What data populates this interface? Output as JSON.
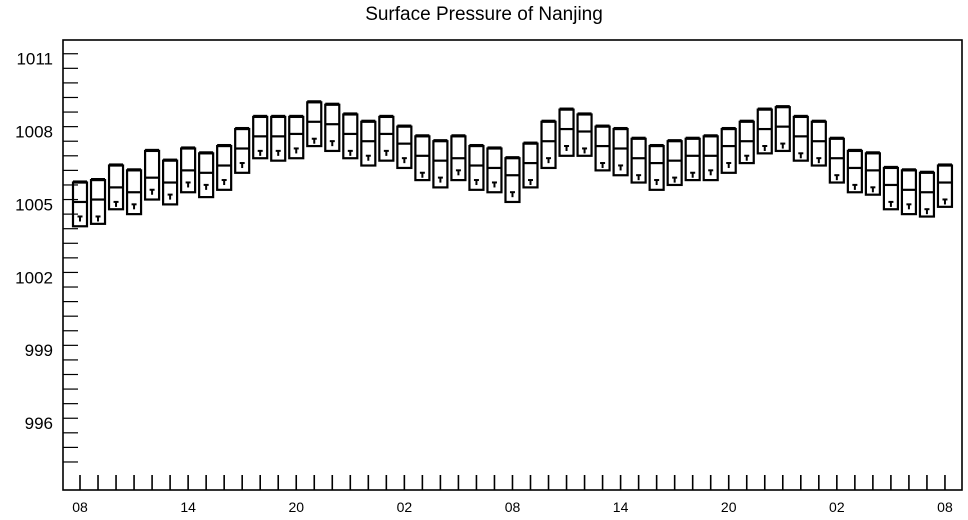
{
  "chart_data": {
    "type": "boxplot",
    "title": "Surface Pressure of Nanjing",
    "xlabel": "",
    "ylabel": "",
    "ylim": [
      994.3,
      1011.6
    ],
    "y_ticks": [
      996,
      999,
      1002,
      1005,
      1008,
      1011
    ],
    "x_tick_labels": [
      "08",
      "14",
      "20",
      "02",
      "08",
      "14",
      "20",
      "02",
      "08"
    ],
    "x_tick_label_index": [
      0,
      6,
      12,
      18,
      24,
      30,
      36,
      42,
      48
    ],
    "grid": false,
    "boxes": [
      {
        "x": 0,
        "low": 1004.1,
        "q1": 1004.1,
        "median": 1005.1,
        "q3": 1005.9,
        "high": 1005.9,
        "mean": 1004.4
      },
      {
        "x": 1,
        "low": 1004.2,
        "q1": 1004.2,
        "median": 1005.2,
        "q3": 1006.0,
        "high": 1006.0,
        "mean": 1004.4
      },
      {
        "x": 2,
        "low": 1004.8,
        "q1": 1004.8,
        "median": 1005.7,
        "q3": 1006.6,
        "high": 1006.6,
        "mean": 1005.0
      },
      {
        "x": 3,
        "low": 1004.6,
        "q1": 1004.6,
        "median": 1005.5,
        "q3": 1006.4,
        "high": 1006.4,
        "mean": 1004.9
      },
      {
        "x": 4,
        "low": 1005.2,
        "q1": 1005.2,
        "median": 1006.1,
        "q3": 1007.2,
        "high": 1007.2,
        "mean": 1005.5
      },
      {
        "x": 5,
        "low": 1005.0,
        "q1": 1005.0,
        "median": 1005.9,
        "q3": 1006.8,
        "high": 1006.8,
        "mean": 1005.3
      },
      {
        "x": 6,
        "low": 1005.5,
        "q1": 1005.5,
        "median": 1006.4,
        "q3": 1007.3,
        "high": 1007.3,
        "mean": 1005.8
      },
      {
        "x": 7,
        "low": 1005.3,
        "q1": 1005.3,
        "median": 1006.3,
        "q3": 1007.1,
        "high": 1007.1,
        "mean": 1005.7
      },
      {
        "x": 8,
        "low": 1005.6,
        "q1": 1005.6,
        "median": 1006.6,
        "q3": 1007.4,
        "high": 1007.4,
        "mean": 1005.9
      },
      {
        "x": 9,
        "low": 1006.3,
        "q1": 1006.3,
        "median": 1007.3,
        "q3": 1008.1,
        "high": 1008.1,
        "mean": 1006.6
      },
      {
        "x": 10,
        "low": 1006.9,
        "q1": 1006.9,
        "median": 1007.8,
        "q3": 1008.6,
        "high": 1008.6,
        "mean": 1007.1
      },
      {
        "x": 11,
        "low": 1006.8,
        "q1": 1006.8,
        "median": 1007.8,
        "q3": 1008.6,
        "high": 1008.6,
        "mean": 1007.1
      },
      {
        "x": 12,
        "low": 1006.9,
        "q1": 1006.9,
        "median": 1007.9,
        "q3": 1008.6,
        "high": 1008.6,
        "mean": 1007.2
      },
      {
        "x": 13,
        "low": 1007.4,
        "q1": 1007.4,
        "median": 1008.4,
        "q3": 1009.2,
        "high": 1009.2,
        "mean": 1007.6
      },
      {
        "x": 14,
        "low": 1007.2,
        "q1": 1007.2,
        "median": 1008.3,
        "q3": 1009.1,
        "high": 1009.1,
        "mean": 1007.5
      },
      {
        "x": 15,
        "low": 1006.9,
        "q1": 1006.9,
        "median": 1007.9,
        "q3": 1008.7,
        "high": 1008.7,
        "mean": 1007.1
      },
      {
        "x": 16,
        "low": 1006.6,
        "q1": 1006.6,
        "median": 1007.6,
        "q3": 1008.4,
        "high": 1008.4,
        "mean": 1006.9
      },
      {
        "x": 17,
        "low": 1006.8,
        "q1": 1006.8,
        "median": 1007.9,
        "q3": 1008.6,
        "high": 1008.6,
        "mean": 1007.1
      },
      {
        "x": 18,
        "low": 1006.5,
        "q1": 1006.5,
        "median": 1007.5,
        "q3": 1008.2,
        "high": 1008.2,
        "mean": 1006.8
      },
      {
        "x": 19,
        "low": 1006.0,
        "q1": 1006.0,
        "median": 1007.0,
        "q3": 1007.8,
        "high": 1007.8,
        "mean": 1006.2
      },
      {
        "x": 20,
        "low": 1005.7,
        "q1": 1005.7,
        "median": 1006.8,
        "q3": 1007.6,
        "high": 1007.6,
        "mean": 1006.0
      },
      {
        "x": 21,
        "low": 1006.0,
        "q1": 1006.0,
        "median": 1006.9,
        "q3": 1007.8,
        "high": 1007.8,
        "mean": 1006.3
      },
      {
        "x": 22,
        "low": 1005.6,
        "q1": 1005.6,
        "median": 1006.6,
        "q3": 1007.4,
        "high": 1007.4,
        "mean": 1005.9
      },
      {
        "x": 23,
        "low": 1005.5,
        "q1": 1005.5,
        "median": 1006.5,
        "q3": 1007.3,
        "high": 1007.3,
        "mean": 1005.8
      },
      {
        "x": 24,
        "low": 1005.1,
        "q1": 1005.1,
        "median": 1006.2,
        "q3": 1006.9,
        "high": 1006.9,
        "mean": 1005.4
      },
      {
        "x": 25,
        "low": 1005.7,
        "q1": 1005.7,
        "median": 1006.7,
        "q3": 1007.5,
        "high": 1007.5,
        "mean": 1005.9
      },
      {
        "x": 26,
        "low": 1006.5,
        "q1": 1006.5,
        "median": 1007.6,
        "q3": 1008.4,
        "high": 1008.4,
        "mean": 1006.8
      },
      {
        "x": 27,
        "low": 1007.0,
        "q1": 1007.0,
        "median": 1008.1,
        "q3": 1008.9,
        "high": 1008.9,
        "mean": 1007.3
      },
      {
        "x": 28,
        "low": 1007.0,
        "q1": 1007.0,
        "median": 1008.0,
        "q3": 1008.7,
        "high": 1008.7,
        "mean": 1007.2
      },
      {
        "x": 29,
        "low": 1006.4,
        "q1": 1006.4,
        "median": 1007.4,
        "q3": 1008.2,
        "high": 1008.2,
        "mean": 1006.6
      },
      {
        "x": 30,
        "low": 1006.2,
        "q1": 1006.2,
        "median": 1007.3,
        "q3": 1008.1,
        "high": 1008.1,
        "mean": 1006.5
      },
      {
        "x": 31,
        "low": 1005.9,
        "q1": 1005.9,
        "median": 1006.9,
        "q3": 1007.7,
        "high": 1007.7,
        "mean": 1006.1
      },
      {
        "x": 32,
        "low": 1005.6,
        "q1": 1005.6,
        "median": 1006.7,
        "q3": 1007.4,
        "high": 1007.4,
        "mean": 1005.9
      },
      {
        "x": 33,
        "low": 1005.8,
        "q1": 1005.8,
        "median": 1006.8,
        "q3": 1007.6,
        "high": 1007.6,
        "mean": 1006.0
      },
      {
        "x": 34,
        "low": 1006.0,
        "q1": 1006.0,
        "median": 1007.0,
        "q3": 1007.7,
        "high": 1007.7,
        "mean": 1006.2
      },
      {
        "x": 35,
        "low": 1006.0,
        "q1": 1006.0,
        "median": 1007.0,
        "q3": 1007.8,
        "high": 1007.8,
        "mean": 1006.3
      },
      {
        "x": 36,
        "low": 1006.3,
        "q1": 1006.3,
        "median": 1007.4,
        "q3": 1008.1,
        "high": 1008.1,
        "mean": 1006.6
      },
      {
        "x": 37,
        "low": 1006.7,
        "q1": 1006.7,
        "median": 1007.6,
        "q3": 1008.4,
        "high": 1008.4,
        "mean": 1006.9
      },
      {
        "x": 38,
        "low": 1007.1,
        "q1": 1007.1,
        "median": 1008.1,
        "q3": 1008.9,
        "high": 1008.9,
        "mean": 1007.3
      },
      {
        "x": 39,
        "low": 1007.2,
        "q1": 1007.2,
        "median": 1008.2,
        "q3": 1009.0,
        "high": 1009.0,
        "mean": 1007.4
      },
      {
        "x": 40,
        "low": 1006.8,
        "q1": 1006.8,
        "median": 1007.8,
        "q3": 1008.6,
        "high": 1008.6,
        "mean": 1007.0
      },
      {
        "x": 41,
        "low": 1006.6,
        "q1": 1006.6,
        "median": 1007.6,
        "q3": 1008.4,
        "high": 1008.4,
        "mean": 1006.8
      },
      {
        "x": 42,
        "low": 1005.9,
        "q1": 1005.9,
        "median": 1006.9,
        "q3": 1007.7,
        "high": 1007.7,
        "mean": 1006.1
      },
      {
        "x": 43,
        "low": 1005.5,
        "q1": 1005.5,
        "median": 1006.5,
        "q3": 1007.2,
        "high": 1007.2,
        "mean": 1005.7
      },
      {
        "x": 44,
        "low": 1005.4,
        "q1": 1005.4,
        "median": 1006.4,
        "q3": 1007.1,
        "high": 1007.1,
        "mean": 1005.6
      },
      {
        "x": 45,
        "low": 1004.8,
        "q1": 1004.8,
        "median": 1005.8,
        "q3": 1006.5,
        "high": 1006.5,
        "mean": 1005.0
      },
      {
        "x": 46,
        "low": 1004.6,
        "q1": 1004.6,
        "median": 1005.6,
        "q3": 1006.4,
        "high": 1006.4,
        "mean": 1004.9
      },
      {
        "x": 47,
        "low": 1004.5,
        "q1": 1004.5,
        "median": 1005.5,
        "q3": 1006.3,
        "high": 1006.3,
        "mean": 1004.7
      },
      {
        "x": 48,
        "low": 1004.9,
        "q1": 1004.9,
        "median": 1005.9,
        "q3": 1006.6,
        "high": 1006.6,
        "mean": 1005.1
      }
    ]
  }
}
